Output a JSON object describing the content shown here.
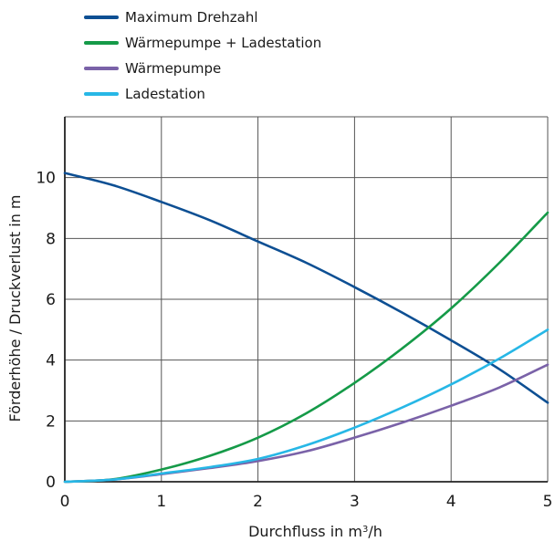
{
  "chart_data": {
    "type": "line",
    "xlabel": "Durchfluss in m³/h",
    "xlabel_main": "Durchfluss in m",
    "xlabel_sup": "3",
    "xlabel_tail": "/h",
    "ylabel": "Förderhöhe / Druckverlust in m",
    "xlim": [
      0,
      5
    ],
    "ylim": [
      0,
      12
    ],
    "x_ticks": [
      0,
      1,
      2,
      3,
      4,
      5
    ],
    "y_ticks": [
      0,
      2,
      4,
      6,
      8,
      10
    ],
    "grid": true,
    "legend_position": "top-left",
    "series": [
      {
        "name": "Maximum Drehzahl",
        "color": "#0d4f93",
        "points": [
          [
            0,
            10.15
          ],
          [
            0.5,
            9.75
          ],
          [
            1,
            9.2
          ],
          [
            1.5,
            8.6
          ],
          [
            2,
            7.9
          ],
          [
            2.5,
            7.2
          ],
          [
            3,
            6.4
          ],
          [
            3.5,
            5.55
          ],
          [
            4,
            4.65
          ],
          [
            4.5,
            3.7
          ],
          [
            5,
            2.6
          ]
        ]
      },
      {
        "name": "Wärmepumpe + Ladestation",
        "color": "#159a48",
        "points": [
          [
            0,
            0
          ],
          [
            0.5,
            0.08
          ],
          [
            1,
            0.4
          ],
          [
            1.5,
            0.85
          ],
          [
            2,
            1.45
          ],
          [
            2.5,
            2.25
          ],
          [
            3,
            3.25
          ],
          [
            3.5,
            4.4
          ],
          [
            4,
            5.7
          ],
          [
            4.5,
            7.2
          ],
          [
            5,
            8.85
          ]
        ]
      },
      {
        "name": "Wärmepumpe",
        "color": "#7a62a8",
        "points": [
          [
            0,
            0
          ],
          [
            0.5,
            0.07
          ],
          [
            1,
            0.25
          ],
          [
            1.5,
            0.45
          ],
          [
            2,
            0.68
          ],
          [
            2.5,
            1.0
          ],
          [
            3,
            1.45
          ],
          [
            3.5,
            1.95
          ],
          [
            4,
            2.5
          ],
          [
            4.5,
            3.1
          ],
          [
            5,
            3.85
          ]
        ]
      },
      {
        "name": "Ladestation",
        "color": "#27b7e6",
        "points": [
          [
            0,
            0
          ],
          [
            0.5,
            0.07
          ],
          [
            1,
            0.27
          ],
          [
            1.5,
            0.48
          ],
          [
            2,
            0.75
          ],
          [
            2.5,
            1.2
          ],
          [
            3,
            1.78
          ],
          [
            3.5,
            2.45
          ],
          [
            4,
            3.2
          ],
          [
            4.5,
            4.05
          ],
          [
            5,
            5.0
          ]
        ]
      }
    ]
  }
}
